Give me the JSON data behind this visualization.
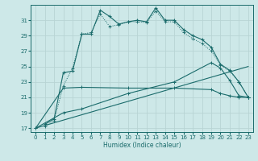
{
  "xlabel": "Humidex (Indice chaleur)",
  "bg_color": "#cde8e8",
  "grid_color": "#b8d4d4",
  "line_color": "#1a6b6b",
  "xlim": [
    -0.5,
    23.5
  ],
  "ylim": [
    16.5,
    33.0
  ],
  "yticks": [
    17,
    19,
    21,
    23,
    25,
    27,
    29,
    31
  ],
  "xticks": [
    0,
    1,
    2,
    3,
    4,
    5,
    6,
    7,
    8,
    9,
    10,
    11,
    12,
    13,
    14,
    15,
    16,
    17,
    18,
    19,
    20,
    21,
    22,
    23
  ],
  "line1_x": [
    1,
    2,
    3,
    4,
    5,
    6,
    7,
    8,
    9,
    10,
    11,
    12,
    13,
    14,
    15,
    16,
    17,
    18,
    19,
    20,
    21,
    22,
    23
  ],
  "line1_y": [
    17.5,
    18.2,
    24.2,
    24.4,
    29.2,
    29.2,
    32.3,
    31.5,
    30.5,
    30.8,
    31.0,
    30.8,
    32.6,
    31.0,
    31.0,
    29.8,
    29.0,
    28.5,
    27.5,
    25.3,
    24.5,
    23.0,
    21.0
  ],
  "line2_x": [
    1,
    2,
    3,
    4,
    5,
    6,
    7,
    8,
    9,
    10,
    11,
    12,
    13,
    14,
    15,
    16,
    17,
    18,
    19,
    20,
    21,
    22,
    23
  ],
  "line2_y": [
    17.2,
    18.0,
    22.5,
    24.8,
    29.2,
    29.4,
    31.8,
    30.2,
    30.4,
    30.8,
    30.8,
    30.7,
    32.2,
    30.8,
    30.8,
    29.4,
    28.6,
    28.0,
    27.0,
    25.2,
    24.4,
    23.0,
    21.0
  ],
  "line3_x": [
    0,
    3,
    5,
    10,
    15,
    19,
    20,
    21,
    22,
    23
  ],
  "line3_y": [
    17.0,
    22.2,
    22.3,
    22.2,
    22.2,
    22.0,
    21.5,
    21.2,
    21.0,
    21.0
  ],
  "line4_x": [
    0,
    3,
    5,
    10,
    15,
    19,
    20,
    21,
    22,
    23
  ],
  "line4_y": [
    17.0,
    19.0,
    19.5,
    21.5,
    23.0,
    25.5,
    24.8,
    23.2,
    21.2,
    21.0
  ],
  "line5_x": [
    0,
    23
  ],
  "line5_y": [
    17.0,
    25.0
  ]
}
